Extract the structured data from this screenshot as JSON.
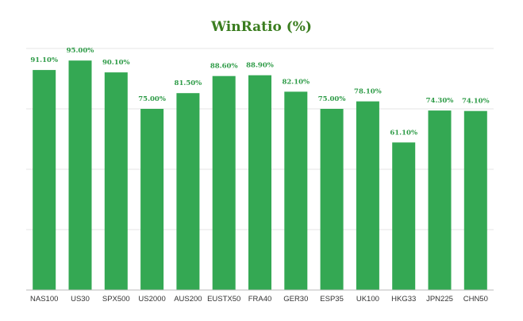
{
  "chart_data": {
    "type": "bar",
    "title": "WinRatio (%)",
    "categories": [
      "NAS100",
      "US30",
      "SPX500",
      "US2000",
      "AUS200",
      "EUSTX50",
      "FRA40",
      "GER30",
      "ESP35",
      "UK100",
      "HKG33",
      "JPN225",
      "CHN50"
    ],
    "values": [
      91.1,
      95.0,
      90.1,
      75.0,
      81.5,
      88.6,
      88.9,
      82.1,
      75.0,
      78.1,
      61.1,
      74.3,
      74.1
    ],
    "data_labels": [
      "91.10%",
      "95.00%",
      "90.10%",
      "75.00%",
      "81.50%",
      "88.60%",
      "88.90%",
      "82.10%",
      "75.00%",
      "78.10%",
      "61.10%",
      "74.30%",
      "74.10%"
    ],
    "xlabel": "",
    "ylabel": "",
    "ylim": [
      0,
      100
    ],
    "grid": true,
    "bar_color": "#34a853",
    "title_color": "#3a7d1f",
    "label_color": "#2e9b47"
  }
}
